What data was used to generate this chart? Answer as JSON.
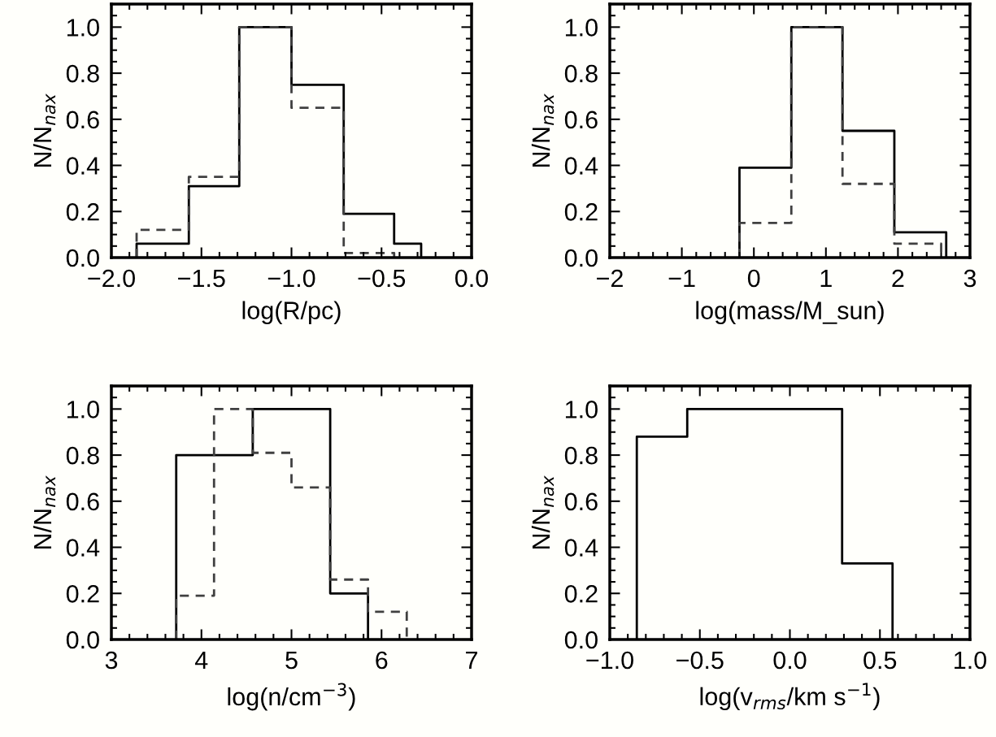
{
  "chart_data": [
    {
      "type": "histogram",
      "xlabel": "log(R/pc)",
      "ylabel": "N/N$_{nax}$",
      "xlim": [
        -2.0,
        0.0
      ],
      "ylim": [
        0,
        1.1
      ],
      "xticks": [
        {
          "value": -2.0,
          "label": "−2.0"
        },
        {
          "value": -1.5,
          "label": "−1.5"
        },
        {
          "value": -1.0,
          "label": "−1.0"
        },
        {
          "value": -0.5,
          "label": "−0.5"
        },
        {
          "value": 0.0,
          "label": "0.0"
        }
      ],
      "yticks": [
        {
          "value": 0.0,
          "label": "0.0"
        },
        {
          "value": 0.2,
          "label": "0.2"
        },
        {
          "value": 0.4,
          "label": "0.4"
        },
        {
          "value": 0.6,
          "label": "0.6"
        },
        {
          "value": 0.8,
          "label": "0.8"
        },
        {
          "value": 1.0,
          "label": "1.0"
        }
      ],
      "bins": [
        -1.86,
        -1.57,
        -1.29,
        -1.0,
        -0.71,
        -0.43,
        -0.28
      ],
      "series": [
        {
          "color": "#000000",
          "line_style": "solid",
          "values": [
            0.06,
            0.31,
            1.0,
            0.75,
            0.19,
            0.06
          ]
        },
        {
          "color": "#404040",
          "line_style": "dashed",
          "bins": [
            -1.86,
            -1.57,
            -1.29,
            -1.0,
            -0.71,
            -0.43
          ],
          "values": [
            0.12,
            0.35,
            1.0,
            0.65,
            0.02
          ]
        }
      ]
    },
    {
      "type": "histogram",
      "xlabel": "log(mass/M_sun)",
      "ylabel": "N/N$_{nax}$",
      "xlim": [
        -2,
        3
      ],
      "ylim": [
        0,
        1.1
      ],
      "xticks": [
        {
          "value": -2,
          "label": "−2"
        },
        {
          "value": -1,
          "label": "−1"
        },
        {
          "value": 0,
          "label": "0"
        },
        {
          "value": 1,
          "label": "1"
        },
        {
          "value": 2,
          "label": "2"
        },
        {
          "value": 3,
          "label": "3"
        }
      ],
      "yticks": [
        {
          "value": 0.0,
          "label": "0.0"
        },
        {
          "value": 0.2,
          "label": "0.2"
        },
        {
          "value": 0.4,
          "label": "0.4"
        },
        {
          "value": 0.6,
          "label": "0.6"
        },
        {
          "value": 0.8,
          "label": "0.8"
        },
        {
          "value": 1.0,
          "label": "1.0"
        }
      ],
      "bins": [
        -0.2,
        0.52,
        1.23,
        1.95,
        2.67
      ],
      "series": [
        {
          "color": "#000000",
          "line_style": "solid",
          "values": [
            0.39,
            1.0,
            0.55,
            0.11
          ]
        },
        {
          "color": "#404040",
          "line_style": "dashed",
          "bins": [
            -0.2,
            0.52,
            1.23,
            1.95,
            2.6
          ],
          "values": [
            0.15,
            1.0,
            0.32,
            0.06
          ]
        }
      ]
    },
    {
      "type": "histogram",
      "xlabel": "log(n/cm$^{−3}$)",
      "ylabel": "N/N$_{nax}$",
      "xlim": [
        3,
        7
      ],
      "ylim": [
        0,
        1.1
      ],
      "xticks": [
        {
          "value": 3,
          "label": "3"
        },
        {
          "value": 4,
          "label": "4"
        },
        {
          "value": 5,
          "label": "5"
        },
        {
          "value": 6,
          "label": "6"
        },
        {
          "value": 7,
          "label": "7"
        }
      ],
      "yticks": [
        {
          "value": 0.0,
          "label": "0.0"
        },
        {
          "value": 0.2,
          "label": "0.2"
        },
        {
          "value": 0.4,
          "label": "0.4"
        },
        {
          "value": 0.6,
          "label": "0.6"
        },
        {
          "value": 0.8,
          "label": "0.8"
        },
        {
          "value": 1.0,
          "label": "1.0"
        }
      ],
      "bins": [
        3.72,
        4.57,
        5.43,
        5.85
      ],
      "series": [
        {
          "color": "#000000",
          "line_style": "solid",
          "values": [
            0.8,
            1.0,
            0.2
          ]
        },
        {
          "color": "#404040",
          "line_style": "dashed",
          "bins": [
            3.72,
            4.14,
            4.57,
            5.0,
            5.43,
            5.85,
            6.28
          ],
          "values": [
            0.19,
            1.0,
            0.81,
            0.66,
            0.26,
            0.12
          ]
        }
      ]
    },
    {
      "type": "histogram",
      "xlabel": "log(v$_{rms}$/km s$^{−1}$)",
      "ylabel": "N/N$_{nax}$",
      "xlim": [
        -1.0,
        1.0
      ],
      "ylim": [
        0,
        1.1
      ],
      "xticks": [
        {
          "value": -1.0,
          "label": "−1.0"
        },
        {
          "value": -0.5,
          "label": "−0.5"
        },
        {
          "value": 0.0,
          "label": "0.0"
        },
        {
          "value": 0.5,
          "label": "0.5"
        },
        {
          "value": 1.0,
          "label": "1.0"
        }
      ],
      "yticks": [
        {
          "value": 0.0,
          "label": "0.0"
        },
        {
          "value": 0.2,
          "label": "0.2"
        },
        {
          "value": 0.4,
          "label": "0.4"
        },
        {
          "value": 0.6,
          "label": "0.6"
        },
        {
          "value": 0.8,
          "label": "0.8"
        },
        {
          "value": 1.0,
          "label": "1.0"
        }
      ],
      "bins": [
        -0.85,
        -0.57,
        0.29,
        0.57
      ],
      "series": [
        {
          "color": "#000000",
          "line_style": "solid",
          "values": [
            0.88,
            1.0,
            0.33
          ]
        }
      ]
    }
  ]
}
